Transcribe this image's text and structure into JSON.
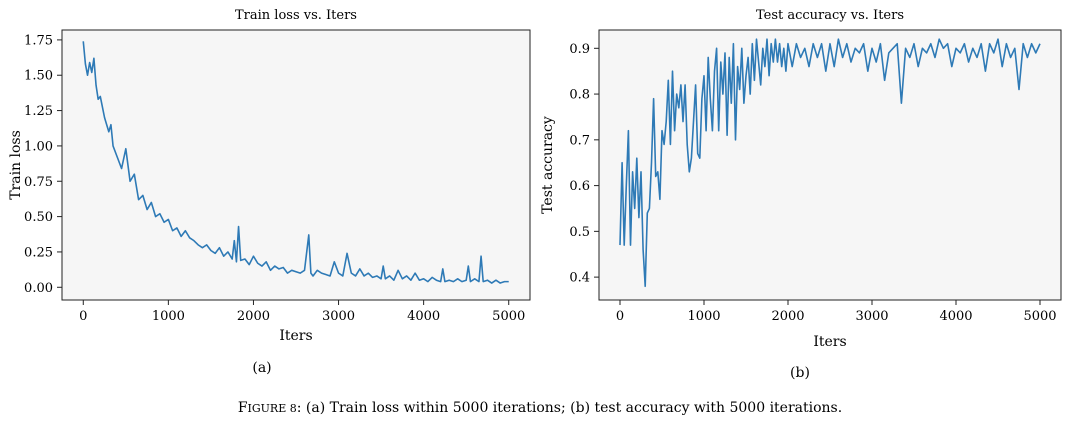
{
  "chart_data": [
    {
      "type": "line",
      "panel_label": "(a)",
      "title": "Train loss vs. Iters",
      "xlabel": "Iters",
      "ylabel": "Train loss",
      "xlim": [
        -250,
        5250
      ],
      "ylim": [
        -0.09,
        1.82
      ],
      "xticks": [
        0,
        1000,
        2000,
        3000,
        4000,
        5000
      ],
      "xtick_labels": [
        "0",
        "1000",
        "2000",
        "3000",
        "4000",
        "5000"
      ],
      "yticks": [
        0.0,
        0.25,
        0.5,
        0.75,
        1.0,
        1.25,
        1.5,
        1.75
      ],
      "ytick_labels": [
        "0.00",
        "0.25",
        "0.50",
        "0.75",
        "1.00",
        "1.25",
        "1.50",
        "1.75"
      ],
      "color": "#2e7ab6",
      "series": [
        {
          "name": "Train loss",
          "x": [
            0,
            25,
            50,
            75,
            100,
            125,
            150,
            175,
            200,
            250,
            300,
            325,
            350,
            400,
            450,
            500,
            550,
            600,
            650,
            700,
            750,
            800,
            850,
            900,
            950,
            1000,
            1050,
            1100,
            1150,
            1200,
            1250,
            1300,
            1350,
            1400,
            1450,
            1500,
            1550,
            1600,
            1650,
            1700,
            1750,
            1775,
            1800,
            1825,
            1850,
            1900,
            1950,
            2000,
            2050,
            2100,
            2150,
            2200,
            2250,
            2300,
            2350,
            2400,
            2450,
            2500,
            2550,
            2600,
            2650,
            2675,
            2700,
            2750,
            2800,
            2850,
            2900,
            2950,
            3000,
            3050,
            3100,
            3150,
            3200,
            3250,
            3300,
            3350,
            3400,
            3450,
            3500,
            3525,
            3550,
            3600,
            3650,
            3700,
            3750,
            3800,
            3850,
            3900,
            3950,
            4000,
            4050,
            4100,
            4150,
            4200,
            4225,
            4250,
            4300,
            4350,
            4400,
            4450,
            4500,
            4525,
            4550,
            4600,
            4650,
            4675,
            4700,
            4750,
            4800,
            4850,
            4900,
            4950,
            5000
          ],
          "values": [
            1.74,
            1.58,
            1.5,
            1.59,
            1.52,
            1.62,
            1.43,
            1.33,
            1.35,
            1.2,
            1.1,
            1.15,
            1.0,
            0.92,
            0.84,
            0.98,
            0.75,
            0.8,
            0.62,
            0.65,
            0.55,
            0.6,
            0.5,
            0.52,
            0.46,
            0.48,
            0.4,
            0.42,
            0.36,
            0.4,
            0.35,
            0.33,
            0.3,
            0.28,
            0.3,
            0.26,
            0.24,
            0.28,
            0.22,
            0.25,
            0.2,
            0.33,
            0.18,
            0.43,
            0.19,
            0.2,
            0.16,
            0.22,
            0.17,
            0.15,
            0.18,
            0.12,
            0.15,
            0.13,
            0.14,
            0.1,
            0.12,
            0.11,
            0.1,
            0.12,
            0.37,
            0.1,
            0.08,
            0.12,
            0.1,
            0.09,
            0.08,
            0.18,
            0.1,
            0.08,
            0.24,
            0.1,
            0.08,
            0.13,
            0.08,
            0.1,
            0.07,
            0.08,
            0.06,
            0.15,
            0.06,
            0.08,
            0.05,
            0.12,
            0.06,
            0.08,
            0.05,
            0.1,
            0.05,
            0.06,
            0.04,
            0.07,
            0.05,
            0.04,
            0.13,
            0.04,
            0.05,
            0.04,
            0.06,
            0.04,
            0.05,
            0.15,
            0.04,
            0.06,
            0.04,
            0.22,
            0.04,
            0.05,
            0.03,
            0.05,
            0.03,
            0.04,
            0.04
          ]
        }
      ]
    },
    {
      "type": "line",
      "panel_label": "(b)",
      "title": "Test accuracy vs. Iters",
      "xlabel": "Iters",
      "ylabel": "Test accuracy",
      "xlim": [
        -250,
        5250
      ],
      "ylim": [
        0.35,
        0.94
      ],
      "xticks": [
        0,
        1000,
        2000,
        3000,
        4000,
        5000
      ],
      "xtick_labels": [
        "0",
        "1000",
        "2000",
        "3000",
        "4000",
        "5000"
      ],
      "yticks": [
        0.4,
        0.5,
        0.6,
        0.7,
        0.8,
        0.9
      ],
      "ytick_labels": [
        "0.4",
        "0.5",
        "0.6",
        "0.7",
        "0.8",
        "0.9"
      ],
      "color": "#2e7ab6",
      "series": [
        {
          "name": "Test accuracy",
          "x": [
            0,
            25,
            50,
            75,
            100,
            125,
            150,
            175,
            200,
            225,
            250,
            275,
            300,
            325,
            350,
            375,
            400,
            425,
            450,
            475,
            500,
            525,
            550,
            575,
            600,
            625,
            650,
            675,
            700,
            725,
            750,
            775,
            800,
            825,
            850,
            875,
            900,
            925,
            950,
            975,
            1000,
            1025,
            1050,
            1075,
            1100,
            1125,
            1150,
            1175,
            1200,
            1225,
            1250,
            1275,
            1300,
            1325,
            1350,
            1375,
            1400,
            1425,
            1450,
            1475,
            1500,
            1525,
            1550,
            1575,
            1600,
            1625,
            1650,
            1675,
            1700,
            1725,
            1750,
            1775,
            1800,
            1825,
            1850,
            1875,
            1900,
            1925,
            1950,
            1975,
            2000,
            2050,
            2100,
            2150,
            2200,
            2250,
            2300,
            2350,
            2400,
            2450,
            2500,
            2550,
            2600,
            2650,
            2700,
            2750,
            2800,
            2850,
            2900,
            2950,
            3000,
            3050,
            3100,
            3150,
            3200,
            3250,
            3300,
            3350,
            3400,
            3450,
            3500,
            3550,
            3600,
            3650,
            3700,
            3750,
            3800,
            3850,
            3900,
            3950,
            4000,
            4050,
            4100,
            4150,
            4200,
            4250,
            4300,
            4350,
            4400,
            4450,
            4500,
            4550,
            4600,
            4650,
            4700,
            4750,
            4800,
            4850,
            4900,
            4950,
            5000
          ],
          "values": [
            0.47,
            0.65,
            0.47,
            0.6,
            0.72,
            0.47,
            0.63,
            0.55,
            0.66,
            0.53,
            0.63,
            0.46,
            0.38,
            0.54,
            0.55,
            0.65,
            0.79,
            0.62,
            0.63,
            0.57,
            0.72,
            0.69,
            0.74,
            0.83,
            0.69,
            0.85,
            0.72,
            0.8,
            0.77,
            0.82,
            0.74,
            0.82,
            0.69,
            0.63,
            0.66,
            0.74,
            0.82,
            0.67,
            0.66,
            0.79,
            0.84,
            0.72,
            0.88,
            0.79,
            0.72,
            0.85,
            0.9,
            0.72,
            0.87,
            0.8,
            0.89,
            0.71,
            0.88,
            0.78,
            0.91,
            0.7,
            0.86,
            0.81,
            0.9,
            0.78,
            0.84,
            0.88,
            0.8,
            0.91,
            0.83,
            0.92,
            0.87,
            0.82,
            0.9,
            0.86,
            0.92,
            0.84,
            0.91,
            0.87,
            0.92,
            0.87,
            0.91,
            0.86,
            0.9,
            0.85,
            0.91,
            0.86,
            0.91,
            0.88,
            0.9,
            0.86,
            0.91,
            0.88,
            0.91,
            0.85,
            0.91,
            0.86,
            0.92,
            0.88,
            0.91,
            0.87,
            0.9,
            0.89,
            0.91,
            0.85,
            0.9,
            0.87,
            0.91,
            0.83,
            0.89,
            0.9,
            0.91,
            0.78,
            0.9,
            0.88,
            0.91,
            0.86,
            0.9,
            0.89,
            0.91,
            0.88,
            0.92,
            0.9,
            0.91,
            0.86,
            0.9,
            0.89,
            0.91,
            0.87,
            0.9,
            0.88,
            0.91,
            0.85,
            0.91,
            0.89,
            0.92,
            0.86,
            0.91,
            0.88,
            0.9,
            0.81,
            0.91,
            0.88,
            0.91,
            0.89,
            0.91
          ]
        }
      ]
    }
  ],
  "caption": {
    "label": "Figure 8",
    "text": ": (a) Train loss within 5000 iterations; (b) test accuracy with 5000 iterations."
  }
}
